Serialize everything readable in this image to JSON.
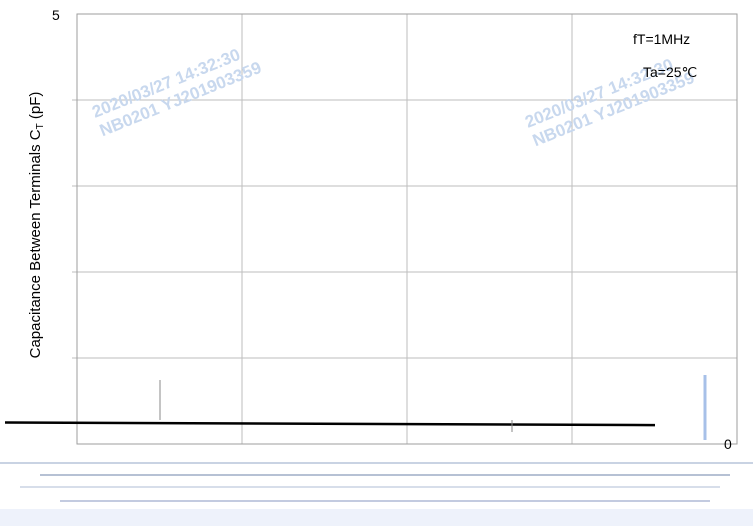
{
  "chart_data": {
    "type": "line",
    "title": "",
    "ylabel_prefix": "Capacitance Between Terminals C",
    "ylabel_sub": "T",
    "ylabel_suffix": " (pF)",
    "y_top_label": "5",
    "y_bottom_label": "0",
    "ylim": [
      0,
      5
    ],
    "y_gridlines": 5,
    "x_gridlines": 4,
    "annotations": [
      "fT=1MHz",
      "Ta=25℃"
    ],
    "watermarks": [
      {
        "line1": "2020/03/27 14:32:30",
        "line2": "NB0201 YJ201903359"
      },
      {
        "line1": "2020/03/27 14:32:30",
        "line2": "NB0201 YJ201903359"
      }
    ],
    "series": [
      {
        "x": [
          0,
          1
        ],
        "values": [
          0.25,
          0.22
        ]
      }
    ],
    "grid": true,
    "colors": {
      "grid": "#bdbdbd",
      "line": "#000000",
      "watermark": "#c8d8ee"
    }
  }
}
